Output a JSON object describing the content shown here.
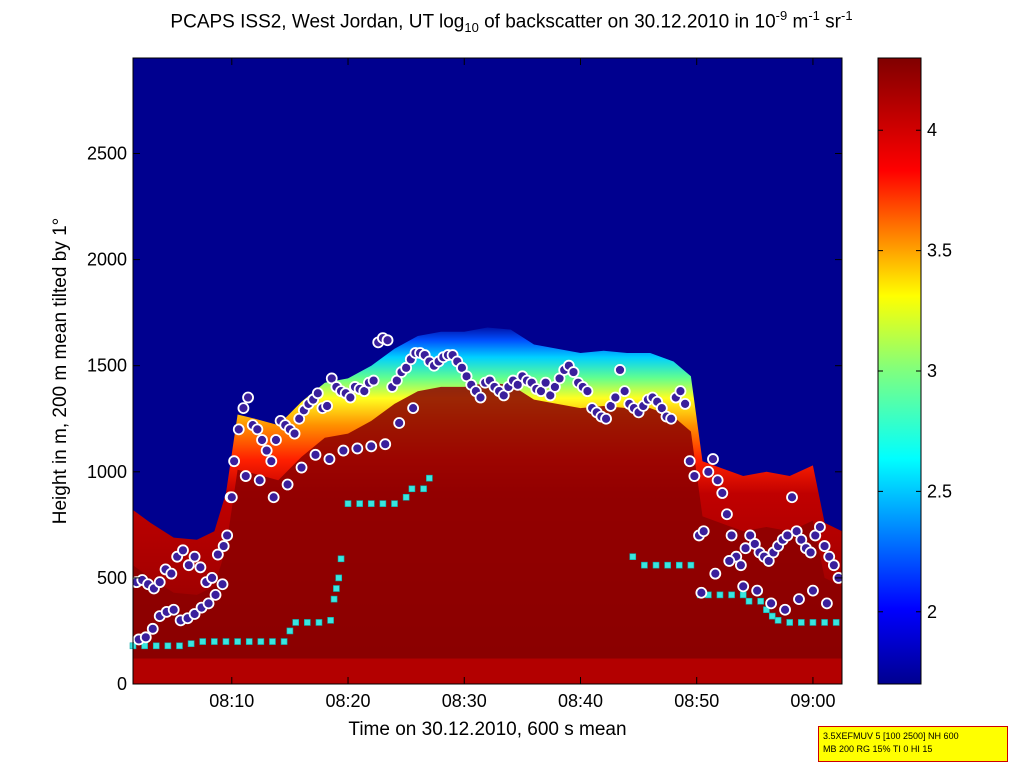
{
  "chart_data": {
    "type": "heatmap",
    "title": {
      "prefix": "PCAPS ISS2, West Jordan, UT log",
      "log_base": "10",
      "middle": " of backscatter on 30.12.2010 in 10",
      "exp1": "-9",
      "unit1": " m",
      "exp2": "-1",
      "unit2": " sr",
      "exp3": "-1"
    },
    "xlabel": "Time on 30.12.2010, 600 s mean",
    "ylabel": "Height in m, 200 m mean tilted by 1°",
    "x_ticks": [
      "08:10",
      "08:20",
      "08:30",
      "08:40",
      "08:50",
      "09:00"
    ],
    "y_ticks": [
      0,
      500,
      1000,
      1500,
      2000,
      2500
    ],
    "ylim": [
      0,
      2950
    ],
    "xlim_minutes": [
      61.5,
      122.5
    ],
    "colorbar": {
      "colormap": "jet",
      "range": [
        1.7,
        4.3
      ],
      "ticks": [
        2,
        2.5,
        3,
        3.5,
        4
      ]
    },
    "aerosol_top_profile": [
      [
        61.5,
        820
      ],
      [
        63,
        760
      ],
      [
        65,
        690
      ],
      [
        67,
        680
      ],
      [
        68.5,
        720
      ],
      [
        69.5,
        900
      ],
      [
        70.5,
        1270
      ],
      [
        72,
        1250
      ],
      [
        74,
        1220
      ],
      [
        76,
        1330
      ],
      [
        78,
        1420
      ],
      [
        80,
        1440
      ],
      [
        82,
        1500
      ],
      [
        84,
        1580
      ],
      [
        86,
        1640
      ],
      [
        88,
        1660
      ],
      [
        90,
        1660
      ],
      [
        92,
        1680
      ],
      [
        94,
        1670
      ],
      [
        96,
        1600
      ],
      [
        98,
        1580
      ],
      [
        100,
        1560
      ],
      [
        102,
        1570
      ],
      [
        104,
        1560
      ],
      [
        106,
        1560
      ],
      [
        108,
        1520
      ],
      [
        109.5,
        1450
      ],
      [
        110.5,
        1050
      ],
      [
        112,
        1020
      ],
      [
        114,
        980
      ],
      [
        116,
        1000
      ],
      [
        118,
        980
      ],
      [
        120,
        1030
      ],
      [
        121,
        760
      ],
      [
        122.5,
        720
      ]
    ],
    "series": [
      {
        "marker": "purple circle with white edge",
        "points": [
          [
            61.8,
            480
          ],
          [
            62.3,
            490
          ],
          [
            62.8,
            470
          ],
          [
            63.3,
            450
          ],
          [
            63.8,
            480
          ],
          [
            64.3,
            540
          ],
          [
            64.8,
            520
          ],
          [
            65.3,
            600
          ],
          [
            65.8,
            630
          ],
          [
            66.3,
            560
          ],
          [
            66.8,
            600
          ],
          [
            67.3,
            550
          ],
          [
            67.8,
            480
          ],
          [
            68.3,
            500
          ],
          [
            68.8,
            610
          ],
          [
            69.3,
            650
          ],
          [
            69.6,
            700
          ],
          [
            69.9,
            880
          ],
          [
            70.2,
            1050
          ],
          [
            70.6,
            1200
          ],
          [
            71.0,
            1300
          ],
          [
            71.4,
            1350
          ],
          [
            71.8,
            1220
          ],
          [
            72.2,
            1200
          ],
          [
            72.6,
            1150
          ],
          [
            73.0,
            1100
          ],
          [
            73.4,
            1050
          ],
          [
            73.8,
            1150
          ],
          [
            74.2,
            1240
          ],
          [
            74.6,
            1220
          ],
          [
            75.0,
            1200
          ],
          [
            75.4,
            1180
          ],
          [
            75.8,
            1250
          ],
          [
            76.2,
            1290
          ],
          [
            76.6,
            1320
          ],
          [
            77.0,
            1340
          ],
          [
            77.4,
            1370
          ],
          [
            77.8,
            1300
          ],
          [
            78.2,
            1310
          ],
          [
            78.6,
            1440
          ],
          [
            79.0,
            1400
          ],
          [
            79.4,
            1380
          ],
          [
            79.8,
            1370
          ],
          [
            80.2,
            1350
          ],
          [
            80.6,
            1400
          ],
          [
            81.0,
            1390
          ],
          [
            81.4,
            1380
          ],
          [
            81.8,
            1420
          ],
          [
            82.2,
            1430
          ],
          [
            82.6,
            1610
          ],
          [
            83.0,
            1630
          ],
          [
            83.4,
            1620
          ],
          [
            83.8,
            1400
          ],
          [
            84.2,
            1430
          ],
          [
            84.6,
            1470
          ],
          [
            85.0,
            1490
          ],
          [
            85.4,
            1530
          ],
          [
            85.8,
            1560
          ],
          [
            86.2,
            1560
          ],
          [
            86.6,
            1550
          ],
          [
            87.0,
            1520
          ],
          [
            87.4,
            1500
          ],
          [
            87.8,
            1520
          ],
          [
            88.2,
            1540
          ],
          [
            88.6,
            1550
          ],
          [
            89.0,
            1550
          ],
          [
            89.4,
            1520
          ],
          [
            89.8,
            1490
          ],
          [
            90.2,
            1450
          ],
          [
            90.6,
            1410
          ],
          [
            91.0,
            1380
          ],
          [
            91.4,
            1350
          ],
          [
            91.8,
            1420
          ],
          [
            92.2,
            1430
          ],
          [
            92.6,
            1400
          ],
          [
            93.0,
            1380
          ],
          [
            93.4,
            1360
          ],
          [
            93.8,
            1400
          ],
          [
            94.2,
            1430
          ],
          [
            94.6,
            1410
          ],
          [
            95.0,
            1450
          ],
          [
            95.4,
            1430
          ],
          [
            95.8,
            1420
          ],
          [
            96.2,
            1390
          ],
          [
            96.6,
            1380
          ],
          [
            97.0,
            1420
          ],
          [
            97.4,
            1360
          ],
          [
            97.8,
            1400
          ],
          [
            98.2,
            1440
          ],
          [
            98.6,
            1480
          ],
          [
            99.0,
            1500
          ],
          [
            99.4,
            1470
          ],
          [
            99.8,
            1420
          ],
          [
            100.2,
            1400
          ],
          [
            100.6,
            1380
          ],
          [
            101.0,
            1300
          ],
          [
            101.4,
            1280
          ],
          [
            101.8,
            1260
          ],
          [
            102.2,
            1250
          ],
          [
            102.6,
            1310
          ],
          [
            103.0,
            1350
          ],
          [
            103.4,
            1480
          ],
          [
            103.8,
            1380
          ],
          [
            104.2,
            1320
          ],
          [
            104.6,
            1300
          ],
          [
            105.0,
            1280
          ],
          [
            105.4,
            1310
          ],
          [
            105.8,
            1340
          ],
          [
            106.2,
            1350
          ],
          [
            106.6,
            1330
          ],
          [
            107.0,
            1300
          ],
          [
            107.4,
            1260
          ],
          [
            107.8,
            1250
          ],
          [
            108.2,
            1350
          ],
          [
            108.6,
            1380
          ],
          [
            109.0,
            1320
          ],
          [
            109.4,
            1050
          ],
          [
            109.8,
            980
          ],
          [
            110.2,
            700
          ],
          [
            110.6,
            720
          ],
          [
            111.0,
            1000
          ],
          [
            111.4,
            1060
          ],
          [
            111.8,
            960
          ],
          [
            112.2,
            900
          ],
          [
            112.6,
            800
          ],
          [
            113.0,
            700
          ],
          [
            113.4,
            600
          ],
          [
            113.8,
            560
          ],
          [
            114.2,
            640
          ],
          [
            114.6,
            700
          ],
          [
            115.0,
            660
          ],
          [
            115.4,
            620
          ],
          [
            115.8,
            600
          ],
          [
            116.2,
            580
          ],
          [
            116.6,
            620
          ],
          [
            117.0,
            650
          ],
          [
            117.4,
            680
          ],
          [
            117.8,
            700
          ],
          [
            118.2,
            880
          ],
          [
            118.6,
            720
          ],
          [
            119.0,
            680
          ],
          [
            119.4,
            640
          ],
          [
            119.8,
            620
          ],
          [
            120.2,
            700
          ],
          [
            120.6,
            740
          ],
          [
            121.0,
            650
          ],
          [
            121.4,
            600
          ],
          [
            121.8,
            560
          ],
          [
            122.2,
            500
          ],
          [
            62.0,
            210
          ],
          [
            62.6,
            220
          ],
          [
            63.2,
            260
          ],
          [
            63.8,
            320
          ],
          [
            64.4,
            340
          ],
          [
            65.0,
            350
          ],
          [
            65.6,
            300
          ],
          [
            66.2,
            310
          ],
          [
            66.8,
            330
          ],
          [
            67.4,
            360
          ],
          [
            68.0,
            380
          ],
          [
            68.6,
            420
          ],
          [
            69.2,
            470
          ],
          [
            70.0,
            880
          ],
          [
            71.2,
            980
          ],
          [
            72.4,
            960
          ],
          [
            73.6,
            880
          ],
          [
            74.8,
            940
          ],
          [
            76.0,
            1020
          ],
          [
            77.2,
            1080
          ],
          [
            78.4,
            1060
          ],
          [
            79.6,
            1100
          ],
          [
            80.8,
            1110
          ],
          [
            82.0,
            1120
          ],
          [
            83.2,
            1130
          ],
          [
            84.4,
            1230
          ],
          [
            85.6,
            1300
          ],
          [
            110.4,
            430
          ],
          [
            111.6,
            520
          ],
          [
            112.8,
            580
          ],
          [
            114.0,
            460
          ],
          [
            115.2,
            440
          ],
          [
            116.4,
            380
          ],
          [
            117.6,
            350
          ],
          [
            118.8,
            400
          ],
          [
            120.0,
            440
          ],
          [
            121.2,
            380
          ]
        ]
      },
      {
        "marker": "cyan square",
        "points": [
          [
            61.5,
            180
          ],
          [
            62.5,
            180
          ],
          [
            63.5,
            180
          ],
          [
            64.5,
            180
          ],
          [
            65.5,
            180
          ],
          [
            66.5,
            190
          ],
          [
            67.5,
            200
          ],
          [
            68.5,
            200
          ],
          [
            69.5,
            200
          ],
          [
            70.5,
            200
          ],
          [
            71.5,
            200
          ],
          [
            72.5,
            200
          ],
          [
            73.5,
            200
          ],
          [
            74.5,
            200
          ],
          [
            75.0,
            250
          ],
          [
            75.5,
            290
          ],
          [
            76.5,
            290
          ],
          [
            77.5,
            290
          ],
          [
            78.5,
            300
          ],
          [
            78.8,
            400
          ],
          [
            79.0,
            450
          ],
          [
            79.2,
            500
          ],
          [
            79.4,
            590
          ],
          [
            80.0,
            850
          ],
          [
            81.0,
            850
          ],
          [
            82.0,
            850
          ],
          [
            83.0,
            850
          ],
          [
            84.0,
            850
          ],
          [
            85.0,
            880
          ],
          [
            85.5,
            920
          ],
          [
            86.5,
            920
          ],
          [
            87.0,
            970
          ],
          [
            104.5,
            600
          ],
          [
            105.5,
            560
          ],
          [
            106.5,
            560
          ],
          [
            107.5,
            560
          ],
          [
            108.5,
            560
          ],
          [
            109.5,
            560
          ],
          [
            110.3,
            420
          ],
          [
            111.0,
            420
          ],
          [
            112.0,
            420
          ],
          [
            113.0,
            420
          ],
          [
            114.0,
            420
          ],
          [
            114.5,
            390
          ],
          [
            115.5,
            390
          ],
          [
            116.0,
            350
          ],
          [
            116.5,
            320
          ],
          [
            117.0,
            300
          ],
          [
            118.0,
            290
          ],
          [
            119.0,
            290
          ],
          [
            120.0,
            290
          ],
          [
            121.0,
            290
          ],
          [
            122.0,
            290
          ]
        ]
      }
    ]
  },
  "info_box": {
    "line1": "3.5XEFMUV 5 [100 2500] NH 600",
    "line2": "MB 200 RG 15% TI 0 HI 15"
  },
  "colors": {
    "background": "#ffffff",
    "box_fill": "#ffff00",
    "box_border": "#cc0000",
    "marker_fill": "#3a1f9c",
    "marker_edge": "#ffffff",
    "cyan_marker": "#39e6e0"
  }
}
